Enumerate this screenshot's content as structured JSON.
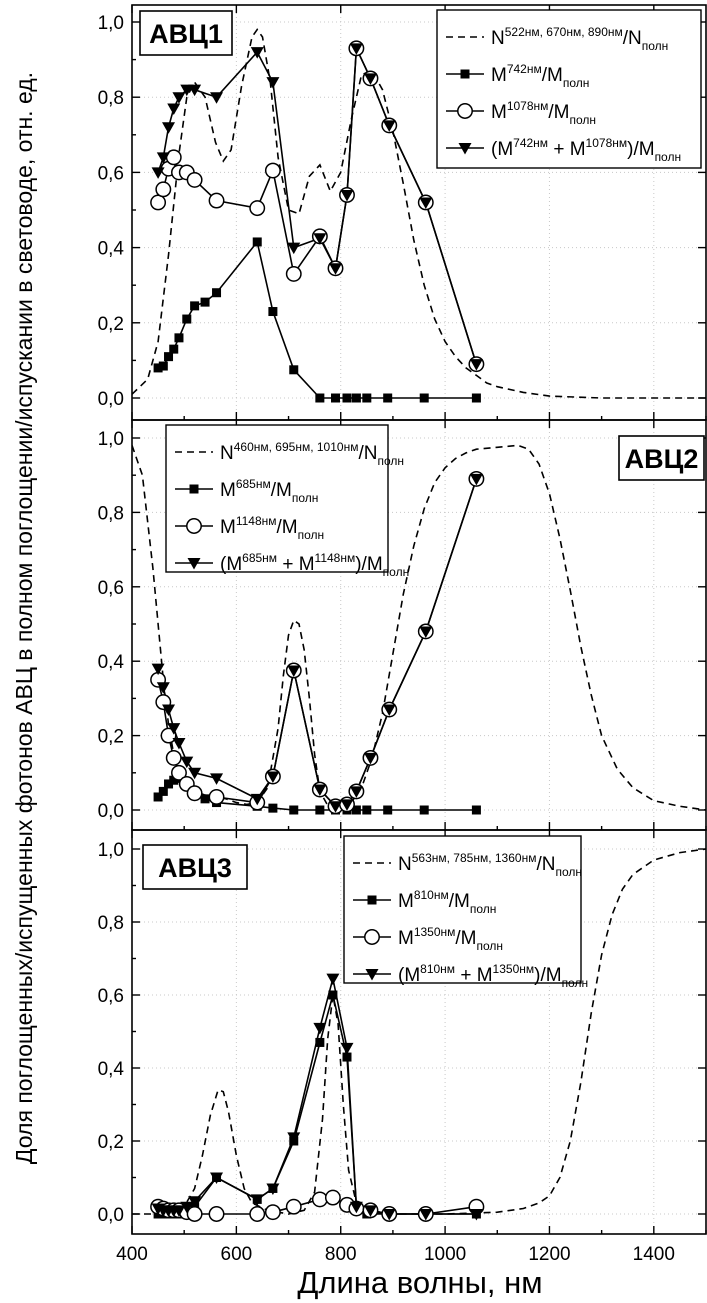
{
  "chart_data": {
    "type": "line",
    "ylabel": "Доля поглощенных/испущенных фотонов АВЦ в полном поглощении/испускании в световоде, отн. ед.",
    "xlabel": "Длина волны, нм",
    "xlim": [
      400,
      1500
    ],
    "xticks": [
      "400",
      "600",
      "800",
      "1000",
      "1200",
      "1400"
    ],
    "ylim": [
      0,
      1.05
    ],
    "yticks": [
      "0,0",
      "0,2",
      "0,4",
      "0,6",
      "0,8",
      "1,0"
    ],
    "grid": true,
    "panels": [
      {
        "badge": "АВЦ1",
        "legend_position": "top-right",
        "series": [
          {
            "kind": "dashed",
            "name_main": "N",
            "name_sup": "522нм, 670нм, 890нм",
            "name_rest": "/N",
            "name_sub": "полн",
            "x": [
              400,
              430,
              450,
              470,
              490,
              505,
              520,
              540,
              560,
              575,
              590,
              610,
              630,
              640,
              650,
              665,
              680,
              700,
              720,
              740,
              760,
              780,
              800,
              820,
              840,
              860,
              880,
              900,
              920,
              940,
              960,
              980,
              1000,
              1020,
              1040,
              1060,
              1080,
              1100,
              1150,
              1200,
              1300,
              1400,
              1500
            ],
            "y": [
              0.01,
              0.05,
              0.15,
              0.38,
              0.65,
              0.8,
              0.84,
              0.8,
              0.68,
              0.63,
              0.66,
              0.83,
              0.96,
              0.98,
              0.96,
              0.84,
              0.64,
              0.5,
              0.49,
              0.59,
              0.62,
              0.55,
              0.6,
              0.74,
              0.86,
              0.87,
              0.82,
              0.71,
              0.57,
              0.42,
              0.3,
              0.21,
              0.15,
              0.11,
              0.08,
              0.06,
              0.04,
              0.03,
              0.015,
              0.005,
              0.0,
              0.0,
              0.0
            ]
          },
          {
            "kind": "square",
            "name_main": "M",
            "name_sup": "742нм",
            "name_rest": "/M",
            "name_sub": "полн",
            "x": [
              450,
              460,
              470,
              480,
              490,
              505,
              520,
              540,
              562,
              640,
              670,
              710,
              760,
              790,
              812,
              830,
              850,
              890,
              960,
              1060
            ],
            "y": [
              0.08,
              0.085,
              0.11,
              0.13,
              0.16,
              0.21,
              0.245,
              0.255,
              0.28,
              0.415,
              0.23,
              0.075,
              0.0,
              0.0,
              0.0,
              0.0,
              0.0,
              0.0,
              0.0,
              0.0
            ]
          },
          {
            "kind": "circle",
            "name_main": "M",
            "name_sup": "1078нм",
            "name_rest": "/M",
            "name_sub": "полн",
            "x": [
              450,
              460,
              470,
              480,
              490,
              505,
              520,
              562,
              640,
              670,
              710,
              760,
              790,
              812,
              830,
              857,
              893,
              963,
              1060
            ],
            "y": [
              0.52,
              0.555,
              0.61,
              0.64,
              0.6,
              0.6,
              0.58,
              0.525,
              0.505,
              0.605,
              0.33,
              0.43,
              0.345,
              0.54,
              0.93,
              0.85,
              0.725,
              0.52,
              0.09
            ]
          },
          {
            "kind": "triangle",
            "name_main": "(M",
            "name_sup": "742нм",
            "name_rest": " + M",
            "name_sup2": "1078нм",
            "name_rest2": ")/M",
            "name_sub": "полн",
            "x": [
              450,
              460,
              470,
              480,
              490,
              505,
              520,
              562,
              640,
              670,
              710,
              760,
              790,
              812,
              830,
              857,
              893,
              963,
              1060
            ],
            "y": [
              0.6,
              0.64,
              0.72,
              0.77,
              0.8,
              0.82,
              0.82,
              0.8,
              0.92,
              0.84,
              0.4,
              0.425,
              0.345,
              0.54,
              0.93,
              0.85,
              0.725,
              0.52,
              0.09
            ]
          }
        ]
      },
      {
        "badge": "АВЦ2",
        "legend_position": "top-left",
        "series": [
          {
            "kind": "dashed",
            "name_main": "N",
            "name_sup": "460нм, 695нм, 1010нм",
            "name_rest": "/N",
            "name_sub": "полн",
            "x": [
              400,
              420,
              440,
              460,
              470,
              480,
              490,
              500,
              520,
              540,
              560,
              580,
              600,
              620,
              640,
              660,
              680,
              690,
              700,
              710,
              720,
              730,
              740,
              750,
              760,
              780,
              800,
              820,
              840,
              860,
              880,
              900,
              920,
              940,
              960,
              980,
              1000,
              1020,
              1040,
              1060,
              1100,
              1140,
              1160,
              1180,
              1200,
              1220,
              1240,
              1260,
              1280,
              1300,
              1330,
              1360,
              1400,
              1450,
              1500
            ],
            "y": [
              0.98,
              0.9,
              0.65,
              0.35,
              0.23,
              0.15,
              0.1,
              0.07,
              0.05,
              0.04,
              0.035,
              0.03,
              0.02,
              0.015,
              0.02,
              0.06,
              0.22,
              0.36,
              0.47,
              0.51,
              0.5,
              0.43,
              0.3,
              0.15,
              0.05,
              0.0,
              0.0,
              0.02,
              0.06,
              0.14,
              0.26,
              0.42,
              0.58,
              0.71,
              0.81,
              0.88,
              0.92,
              0.945,
              0.96,
              0.97,
              0.975,
              0.98,
              0.97,
              0.93,
              0.85,
              0.73,
              0.59,
              0.44,
              0.31,
              0.2,
              0.11,
              0.06,
              0.025,
              0.01,
              0.0
            ]
          },
          {
            "kind": "square",
            "name_main": "M",
            "name_sup": "685нм",
            "name_rest": "/M",
            "name_sub": "полн",
            "x": [
              450,
              460,
              470,
              480,
              490,
              505,
              520,
              540,
              562,
              640,
              670,
              710,
              760,
              790,
              812,
              830,
              850,
              890,
              960,
              1060
            ],
            "y": [
              0.035,
              0.05,
              0.07,
              0.08,
              0.085,
              0.065,
              0.045,
              0.03,
              0.02,
              0.01,
              0.005,
              0.0,
              0.0,
              0.0,
              0.0,
              0.0,
              0.0,
              0.0,
              0.0,
              0.0
            ]
          },
          {
            "kind": "circle",
            "name_main": "M",
            "name_sup": "1148нм",
            "name_rest": "/M",
            "name_sub": "полн",
            "x": [
              450,
              460,
              470,
              480,
              490,
              505,
              520,
              562,
              640,
              670,
              710,
              760,
              790,
              812,
              830,
              857,
              893,
              963,
              1060
            ],
            "y": [
              0.35,
              0.29,
              0.2,
              0.14,
              0.1,
              0.07,
              0.045,
              0.035,
              0.02,
              0.09,
              0.375,
              0.055,
              0.01,
              0.015,
              0.05,
              0.14,
              0.27,
              0.48,
              0.89
            ]
          },
          {
            "kind": "triangle",
            "name_main": "(M",
            "name_sup": "685нм",
            "name_rest": " + M",
            "name_sup2": "1148нм",
            "name_rest2": ")/M",
            "name_sub": "полн",
            "x": [
              450,
              460,
              470,
              480,
              490,
              505,
              520,
              562,
              640,
              670,
              710,
              760,
              790,
              812,
              830,
              857,
              893,
              963,
              1060
            ],
            "y": [
              0.38,
              0.33,
              0.27,
              0.22,
              0.18,
              0.13,
              0.1,
              0.085,
              0.03,
              0.09,
              0.375,
              0.055,
              0.01,
              0.015,
              0.05,
              0.14,
              0.27,
              0.48,
              0.89
            ]
          }
        ]
      },
      {
        "badge": "АВЦ3",
        "legend_position": "top-right",
        "series": [
          {
            "kind": "dashed",
            "name_main": "N",
            "name_sup": "563нм, 785нм, 1360нм",
            "name_rest": "/N",
            "name_sub": "полн",
            "x": [
              400,
              450,
              480,
              500,
              520,
              535,
              550,
              565,
              575,
              585,
              600,
              615,
              630,
              660,
              700,
              730,
              750,
              765,
              775,
              785,
              795,
              805,
              815,
              830,
              850,
              900,
              1000,
              1100,
              1150,
              1180,
              1200,
              1220,
              1240,
              1260,
              1280,
              1300,
              1320,
              1340,
              1360,
              1400,
              1450,
              1500
            ],
            "y": [
              0.0,
              0.0,
              0.0,
              0.02,
              0.07,
              0.16,
              0.27,
              0.34,
              0.335,
              0.28,
              0.16,
              0.07,
              0.03,
              0.01,
              0.0,
              0.01,
              0.06,
              0.26,
              0.48,
              0.6,
              0.52,
              0.3,
              0.12,
              0.03,
              0.005,
              0.0,
              0.0,
              0.005,
              0.015,
              0.03,
              0.05,
              0.1,
              0.2,
              0.36,
              0.55,
              0.71,
              0.82,
              0.89,
              0.93,
              0.97,
              0.99,
              1.0
            ]
          },
          {
            "kind": "square",
            "name_main": "M",
            "name_sup": "810нм",
            "name_rest": "/M",
            "name_sub": "полн",
            "x": [
              450,
              460,
              470,
              480,
              490,
              505,
              520,
              562,
              640,
              670,
              710,
              760,
              785,
              812,
              830,
              850,
              893,
              963,
              1060
            ],
            "y": [
              0.0,
              0.0,
              0.0,
              0.0,
              0.0,
              0.01,
              0.02,
              0.1,
              0.04,
              0.07,
              0.2,
              0.47,
              0.6,
              0.43,
              0.02,
              0.0,
              0.0,
              0.0,
              0.0
            ]
          },
          {
            "kind": "circle",
            "name_main": "M",
            "name_sup": "1350нм",
            "name_rest": "/M",
            "name_sub": "полн",
            "x": [
              450,
              460,
              470,
              480,
              490,
              505,
              520,
              562,
              640,
              670,
              710,
              760,
              785,
              812,
              830,
              857,
              893,
              963,
              1060
            ],
            "y": [
              0.02,
              0.015,
              0.01,
              0.01,
              0.01,
              0.005,
              0.0,
              0.0,
              0.0,
              0.005,
              0.02,
              0.04,
              0.045,
              0.025,
              0.015,
              0.01,
              0.0,
              0.0,
              0.02
            ]
          },
          {
            "kind": "triangle",
            "name_main": "(M",
            "name_sup": "810нм",
            "name_rest": " + M",
            "name_sup2": "1350нм",
            "name_rest2": ")/M",
            "name_sub": "полн",
            "x": [
              450,
              460,
              470,
              480,
              490,
              505,
              520,
              562,
              640,
              670,
              710,
              760,
              785,
              812,
              830,
              857,
              893,
              963,
              1060
            ],
            "y": [
              0.015,
              0.01,
              0.01,
              0.01,
              0.01,
              0.02,
              0.035,
              0.1,
              0.04,
              0.07,
              0.21,
              0.51,
              0.645,
              0.455,
              0.02,
              0.01,
              0.0,
              0.0,
              0.0
            ]
          }
        ]
      }
    ]
  }
}
